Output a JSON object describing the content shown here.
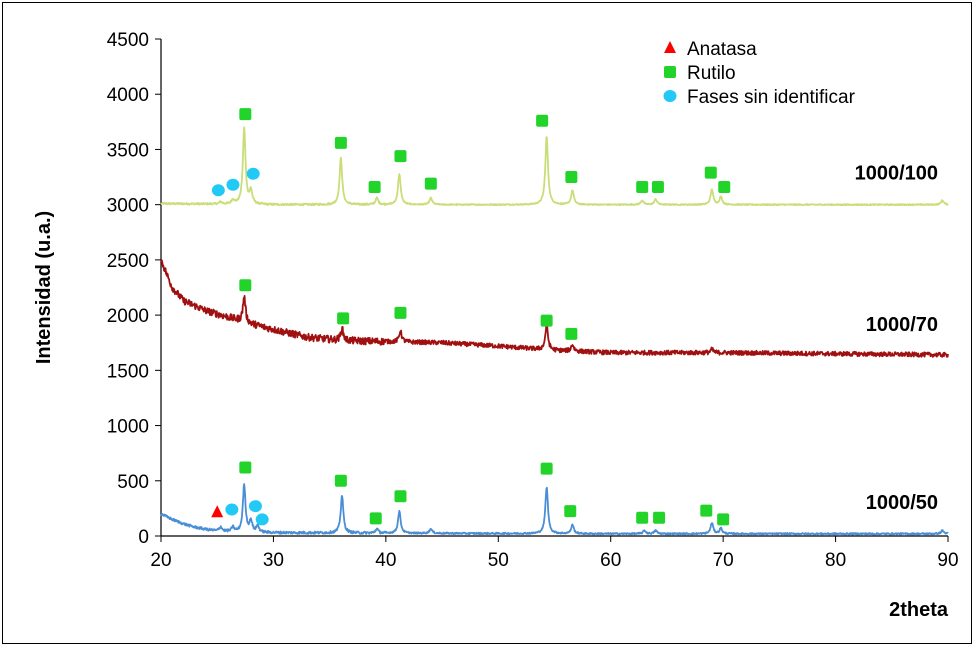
{
  "chart_data": {
    "type": "line",
    "title": "",
    "xlabel": "2theta",
    "ylabel": "Intensidad (u.a.)",
    "xlim": [
      20,
      90
    ],
    "ylim": [
      0,
      4500
    ],
    "xticks": [
      "20",
      "30",
      "40",
      "50",
      "60",
      "70",
      "80",
      "90"
    ],
    "yticks": [
      "0",
      "500",
      "1000",
      "1500",
      "2000",
      "2500",
      "3000",
      "3500",
      "4000",
      "4500"
    ],
    "grid": false,
    "legend_position": "top-right",
    "legend": [
      {
        "label": "Anatasa",
        "marker": "triangle",
        "color": "#ff0000"
      },
      {
        "label": "Rutilo",
        "marker": "square",
        "color": "#22d32a"
      },
      {
        "label": "Fases sin identificar",
        "marker": "circle",
        "color": "#22c9f4"
      }
    ],
    "series": [
      {
        "name": "1000/100",
        "color": "#c9dd78",
        "baseline": 3000,
        "decay": [
          [
            20,
            3010
          ],
          [
            30,
            3000
          ],
          [
            90,
            3000
          ]
        ],
        "noise": 10,
        "peaks": [
          [
            25.3,
            20
          ],
          [
            26.4,
            40
          ],
          [
            27.4,
            690
          ],
          [
            28.0,
            120
          ],
          [
            36.0,
            420
          ],
          [
            39.2,
            60
          ],
          [
            41.2,
            280
          ],
          [
            44.0,
            60
          ],
          [
            54.3,
            620
          ],
          [
            56.6,
            130
          ],
          [
            62.8,
            40
          ],
          [
            64.0,
            50
          ],
          [
            69.0,
            140
          ],
          [
            69.8,
            70
          ],
          [
            89.5,
            40
          ]
        ],
        "markers": [
          {
            "x": 25.1,
            "y": 3130,
            "type": "circle"
          },
          {
            "x": 26.4,
            "y": 3180,
            "type": "circle"
          },
          {
            "x": 28.2,
            "y": 3280,
            "type": "circle"
          },
          {
            "x": 27.5,
            "y": 3820,
            "type": "square"
          },
          {
            "x": 36.0,
            "y": 3560,
            "type": "square"
          },
          {
            "x": 39.0,
            "y": 3160,
            "type": "square"
          },
          {
            "x": 41.3,
            "y": 3440,
            "type": "square"
          },
          {
            "x": 44.0,
            "y": 3190,
            "type": "square"
          },
          {
            "x": 53.9,
            "y": 3760,
            "type": "square"
          },
          {
            "x": 56.5,
            "y": 3250,
            "type": "square"
          },
          {
            "x": 62.8,
            "y": 3160,
            "type": "square"
          },
          {
            "x": 64.2,
            "y": 3160,
            "type": "square"
          },
          {
            "x": 68.9,
            "y": 3290,
            "type": "square"
          },
          {
            "x": 70.1,
            "y": 3160,
            "type": "square"
          }
        ]
      },
      {
        "name": "1000/70",
        "color": "#a01010",
        "baseline": 1640,
        "decay": [
          [
            20,
            2500
          ],
          [
            21,
            2250
          ],
          [
            22,
            2130
          ],
          [
            24,
            2040
          ],
          [
            26,
            1980
          ],
          [
            28,
            1920
          ],
          [
            30,
            1870
          ],
          [
            33,
            1800
          ],
          [
            36,
            1770
          ],
          [
            40,
            1760
          ],
          [
            45,
            1750
          ],
          [
            50,
            1720
          ],
          [
            55,
            1680
          ],
          [
            60,
            1660
          ],
          [
            70,
            1660
          ],
          [
            80,
            1650
          ],
          [
            90,
            1640
          ]
        ],
        "noise": 40,
        "peaks": [
          [
            27.4,
            230
          ],
          [
            36.1,
            110
          ],
          [
            41.3,
            100
          ],
          [
            54.3,
            230
          ],
          [
            56.6,
            60
          ],
          [
            69.0,
            30
          ]
        ],
        "markers": [
          {
            "x": 27.5,
            "y": 2270,
            "type": "square"
          },
          {
            "x": 36.2,
            "y": 1970,
            "type": "square"
          },
          {
            "x": 41.3,
            "y": 2020,
            "type": "square"
          },
          {
            "x": 54.3,
            "y": 1950,
            "type": "square"
          },
          {
            "x": 56.5,
            "y": 1830,
            "type": "square"
          }
        ]
      },
      {
        "name": "1000/50",
        "color": "#4a8fd6",
        "baseline": 20,
        "decay": [
          [
            20,
            200
          ],
          [
            21,
            150
          ],
          [
            22,
            110
          ],
          [
            23,
            80
          ],
          [
            24,
            60
          ],
          [
            25,
            45
          ],
          [
            27,
            35
          ],
          [
            30,
            30
          ],
          [
            40,
            25
          ],
          [
            60,
            20
          ],
          [
            90,
            20
          ]
        ],
        "noise": 14,
        "peaks": [
          [
            25.3,
            40
          ],
          [
            26.4,
            40
          ],
          [
            27.4,
            430
          ],
          [
            28.0,
            100
          ],
          [
            28.6,
            60
          ],
          [
            36.1,
            340
          ],
          [
            39.2,
            40
          ],
          [
            41.2,
            200
          ],
          [
            44.0,
            40
          ],
          [
            54.3,
            420
          ],
          [
            56.6,
            80
          ],
          [
            63.0,
            30
          ],
          [
            64.0,
            30
          ],
          [
            69.0,
            100
          ],
          [
            69.8,
            50
          ],
          [
            89.5,
            30
          ]
        ],
        "markers": [
          {
            "x": 25.0,
            "y": 215,
            "type": "triangle"
          },
          {
            "x": 26.3,
            "y": 240,
            "type": "circle"
          },
          {
            "x": 28.4,
            "y": 270,
            "type": "circle"
          },
          {
            "x": 29.0,
            "y": 150,
            "type": "circle"
          },
          {
            "x": 27.5,
            "y": 620,
            "type": "square"
          },
          {
            "x": 36.0,
            "y": 500,
            "type": "square"
          },
          {
            "x": 39.1,
            "y": 160,
            "type": "square"
          },
          {
            "x": 41.3,
            "y": 360,
            "type": "square"
          },
          {
            "x": 54.3,
            "y": 610,
            "type": "square"
          },
          {
            "x": 56.4,
            "y": 225,
            "type": "square"
          },
          {
            "x": 62.8,
            "y": 165,
            "type": "square"
          },
          {
            "x": 64.3,
            "y": 165,
            "type": "square"
          },
          {
            "x": 68.5,
            "y": 230,
            "type": "square"
          },
          {
            "x": 70.0,
            "y": 150,
            "type": "square"
          }
        ]
      }
    ],
    "series_labels": [
      {
        "text": "1000/100",
        "y": 3290
      },
      {
        "text": "1000/70",
        "y": 1920
      },
      {
        "text": "1000/50",
        "y": 310
      }
    ]
  }
}
